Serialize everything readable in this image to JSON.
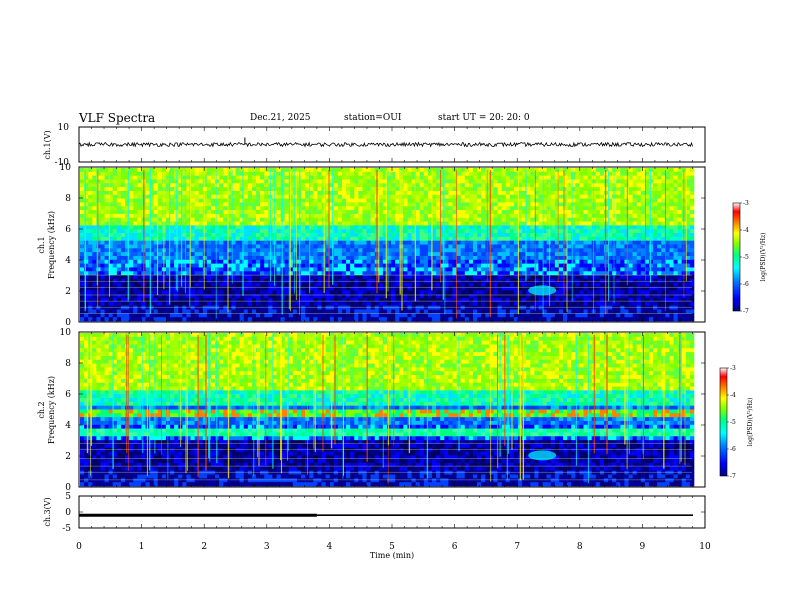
{
  "header": {
    "title": "VLF Spectra",
    "date": "Dec.21, 2025",
    "station": "station=OUI",
    "start": "start  UT  =   20: 20: 0"
  },
  "chart_data": [
    {
      "type": "line",
      "name": "ch1-waveform",
      "ylabel": "ch.1(V)",
      "ylim": [
        -10,
        10
      ],
      "yticks": [
        "10",
        "-10"
      ],
      "xlim": [
        0,
        10
      ],
      "baseline": 0,
      "spike_x": 2.65,
      "spike_y": 4
    },
    {
      "type": "heatmap",
      "name": "ch1-spectrogram",
      "ylabel": "ch.1\nFrequency (kHz)",
      "ylim": [
        0,
        10
      ],
      "yticks": [
        "0",
        "2",
        "4",
        "6",
        "8",
        "10"
      ],
      "xlim": [
        0,
        10
      ],
      "colorbar": {
        "label": "log(PSD)(V²/Hz)",
        "range": [
          -7,
          -3
        ],
        "ticks": [
          "-3",
          "-4",
          "-5",
          "-6",
          "-7"
        ]
      }
    },
    {
      "type": "heatmap",
      "name": "ch2-spectrogram",
      "ylabel": "ch.2\nFrequency (kHz)",
      "ylim": [
        0,
        10
      ],
      "yticks": [
        "0",
        "2",
        "4",
        "6",
        "8",
        "10"
      ],
      "xlim": [
        0,
        10
      ],
      "colorbar": {
        "label": "log(PSD)(V²/Hz)",
        "range": [
          -7,
          -3
        ],
        "ticks": [
          "-3",
          "-4",
          "-5",
          "-6",
          "-7"
        ]
      }
    },
    {
      "type": "line",
      "name": "ch3-signal",
      "ylabel": "ch.3(V)",
      "ylim": [
        -5,
        5
      ],
      "yticks": [
        "5",
        "0",
        "-5"
      ],
      "xlim": [
        0,
        10
      ],
      "level": -1,
      "thick_until": 3.8
    }
  ],
  "xaxis": {
    "label": "Time (min)",
    "ticks": [
      "0",
      "1",
      "2",
      "3",
      "4",
      "5",
      "6",
      "7",
      "8",
      "9",
      "10"
    ]
  },
  "colors": {
    "scale": [
      "#000080",
      "#0000ff",
      "#0080ff",
      "#00ffff",
      "#00ff80",
      "#80ff00",
      "#ffff00",
      "#ff8000",
      "#ff0000",
      "#ffffff"
    ]
  }
}
